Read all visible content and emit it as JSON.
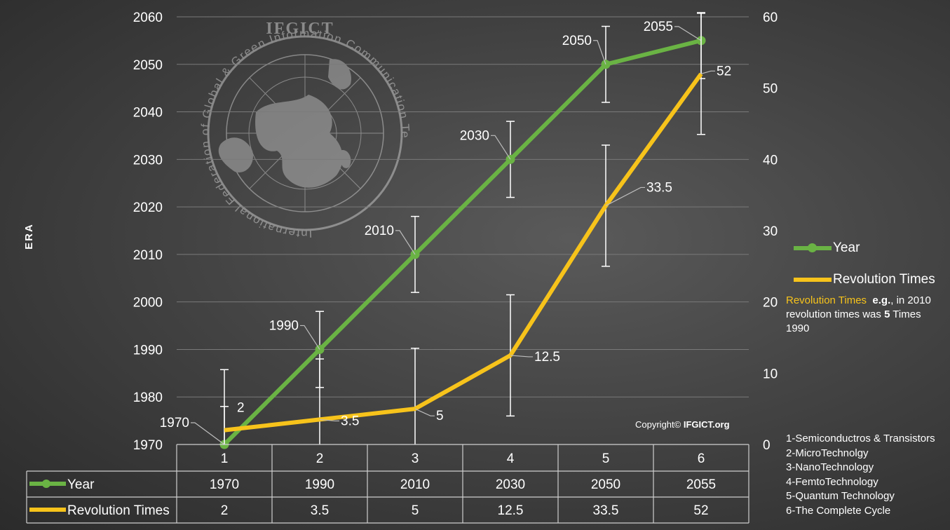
{
  "axis": {
    "left_title": "ERA",
    "left_ticks": [
      "1970",
      "1980",
      "1990",
      "2000",
      "2010",
      "2020",
      "2030",
      "2040",
      "2050",
      "2060"
    ],
    "right_ticks": [
      "0",
      "10",
      "20",
      "30",
      "40",
      "50",
      "60"
    ]
  },
  "chart_data": {
    "type": "line",
    "categories": [
      "1",
      "2",
      "3",
      "4",
      "5",
      "6"
    ],
    "series": [
      {
        "name": "Year",
        "axis": "left",
        "values": [
          1970,
          1990,
          2010,
          2030,
          2050,
          2055
        ],
        "labels": [
          "1970",
          "1990",
          "2010",
          "2030",
          "2050",
          "2055"
        ],
        "color": "#6ab344",
        "error": 8
      },
      {
        "name": "Revolution Times",
        "axis": "right",
        "values": [
          2,
          3.5,
          5,
          12.5,
          33.5,
          52
        ],
        "labels": [
          "2",
          "3.5",
          "5",
          "12.5",
          "33.5",
          "52"
        ],
        "color": "#f7c31b",
        "error": 8.5
      }
    ],
    "ylim_left": [
      1970,
      2060
    ],
    "ylim_right": [
      0,
      60
    ],
    "grid": true,
    "legend": "right"
  },
  "table": {
    "headers": [
      "1",
      "2",
      "3",
      "4",
      "5",
      "6"
    ],
    "rows": [
      {
        "label": "Year",
        "cells": [
          "1970",
          "1990",
          "2010",
          "2030",
          "2050",
          "2055"
        ]
      },
      {
        "label": "Revolution Times",
        "cells": [
          "2",
          "3.5",
          "5",
          "12.5",
          "33.5",
          "52"
        ]
      }
    ]
  },
  "legend": {
    "year": "Year",
    "revolution": "Revolution Times"
  },
  "note": {
    "highlight": "Revolution Times",
    "eg": "e.g.",
    "text1": ", in 2010 revolution times was ",
    "bold": "5",
    "text2": " Times 1990"
  },
  "eras": [
    "1-Semiconductros & Transistors",
    "2-MicroTechnolgy",
    "3-NanoTechnology",
    "4-FemtoTechnology",
    "5-Quantum Technology",
    "6-The Complete Cycle"
  ],
  "watermark": {
    "abbr": "IFGICT",
    "ring_text": "International Federation of Global & Green Information Communication Technology"
  },
  "copyright": {
    "prefix": "Copyright© ",
    "org": "IFGICT.org"
  },
  "colors": {
    "year": "#6ab344",
    "revolution": "#f7c31b"
  }
}
